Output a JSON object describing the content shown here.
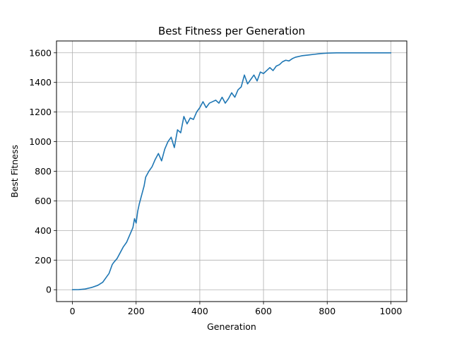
{
  "chart_data": {
    "type": "line",
    "title": "Best Fitness per Generation",
    "xlabel": "Generation",
    "ylabel": "Best Fitness",
    "xlim": [
      -50,
      1050
    ],
    "ylim": [
      -80,
      1680
    ],
    "xticks": [
      0,
      200,
      400,
      600,
      800,
      1000
    ],
    "yticks": [
      0,
      200,
      400,
      600,
      800,
      1000,
      1200,
      1400,
      1600
    ],
    "grid": true,
    "legend": "none",
    "line_color": "#1f77b4",
    "series": [
      {
        "x": [
          0,
          20,
          40,
          60,
          80,
          95,
          105,
          115,
          125,
          130,
          140,
          150,
          160,
          170,
          180,
          190,
          195,
          200,
          205,
          210,
          215,
          220,
          225,
          230,
          240,
          250,
          260,
          270,
          280,
          290,
          300,
          310,
          320,
          330,
          340,
          350,
          360,
          370,
          380,
          390,
          400,
          410,
          420,
          430,
          440,
          450,
          460,
          470,
          480,
          490,
          500,
          510,
          520,
          530,
          540,
          545,
          550,
          560,
          570,
          580,
          590,
          600,
          610,
          620,
          630,
          640,
          650,
          660,
          670,
          680,
          690,
          700,
          720,
          740,
          760,
          780,
          800,
          830,
          860,
          900,
          950,
          1000
        ],
        "y": [
          0,
          1,
          5,
          15,
          30,
          50,
          80,
          110,
          170,
          185,
          210,
          250,
          290,
          320,
          370,
          420,
          480,
          450,
          530,
          580,
          620,
          660,
          700,
          760,
          800,
          830,
          880,
          920,
          870,
          950,
          1000,
          1030,
          960,
          1080,
          1060,
          1170,
          1120,
          1160,
          1150,
          1200,
          1230,
          1270,
          1230,
          1260,
          1270,
          1280,
          1260,
          1300,
          1260,
          1290,
          1330,
          1300,
          1350,
          1370,
          1450,
          1420,
          1390,
          1420,
          1450,
          1410,
          1470,
          1460,
          1480,
          1500,
          1480,
          1510,
          1520,
          1540,
          1550,
          1545,
          1560,
          1570,
          1580,
          1585,
          1590,
          1595,
          1598,
          1600,
          1600,
          1600,
          1600,
          1600
        ]
      }
    ]
  }
}
